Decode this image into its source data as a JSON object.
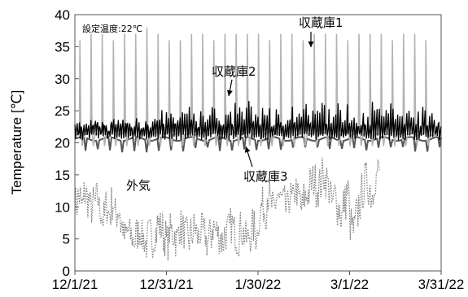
{
  "chart_data": {
    "type": "line",
    "title": "",
    "note": "設定温度:22℃",
    "ylabel": "Temperature [℃]",
    "xlabel": "",
    "ylim": [
      0,
      40
    ],
    "yticks": [
      0,
      5,
      10,
      15,
      20,
      25,
      30,
      35,
      40
    ],
    "xlim": [
      "2021-12-01",
      "2022-03-31"
    ],
    "xticks": [
      "12/1/21",
      "12/31/21",
      "1/30/22",
      "3/1/22",
      "3/31/22"
    ],
    "grid": false,
    "series": [
      {
        "name": "収蔵庫1",
        "color": "#b3b3b3",
        "style": "solid",
        "base": 21.0,
        "spikes_to": [
          36,
          37,
          37,
          36,
          37,
          37,
          38,
          37,
          36,
          36,
          37,
          37,
          36,
          37,
          37,
          37,
          37,
          36,
          37,
          37,
          36,
          37,
          37,
          37,
          36,
          37,
          37,
          37,
          36,
          37,
          37,
          36
        ]
      },
      {
        "name": "収蔵庫2",
        "color": "#000000",
        "style": "solid",
        "base": 21.0,
        "daily_max": [
          23.2,
          23.8,
          23.5,
          24.1,
          23.9,
          24.8,
          24.2,
          25.2,
          24.8,
          26.1,
          25.4,
          25.9,
          25.1,
          26.3,
          26.8,
          26.0,
          25.5,
          26.6,
          26.2,
          25.8,
          26.4,
          26.9,
          26.1,
          25.7,
          26.5,
          26.3,
          25.9,
          26.2,
          26.0,
          25.8
        ]
      },
      {
        "name": "収蔵庫3",
        "color": "#555555",
        "style": "solid",
        "base": 20.6,
        "min_around": 18.5
      },
      {
        "name": "外気",
        "color": "#808080",
        "style": "dotted",
        "daily_mean": [
          10.5,
          11.5,
          10.2,
          12.0,
          11.0,
          9.8,
          10.5,
          11.2,
          9.5,
          8.2,
          10.1,
          9.0,
          10.6,
          8.8,
          9.5,
          7.0,
          5.2,
          6.1,
          5.5,
          4.8,
          5.8,
          6.5,
          5.1,
          4.2,
          5.5,
          4.9,
          6.0,
          7.2,
          6.8,
          5.3,
          4.5,
          6.2,
          5.8,
          4.9,
          7.0,
          6.3,
          5.5,
          4.8,
          5.9,
          6.6,
          5.2,
          6.1,
          5.7,
          4.6,
          5.4,
          6.9,
          6.2,
          5.5,
          4.7,
          5.9,
          6.3,
          7.1,
          6.0,
          5.2,
          6.6,
          5.8,
          4.9,
          5.6,
          6.8,
          5.7,
          8.0,
          10.2,
          9.5,
          11.8,
          10.3,
          9.2,
          12.1,
          11.0,
          10.4,
          9.6,
          11.5,
          10.8,
          12.6,
          11.2,
          9.9,
          11.4,
          12.2,
          13.6,
          14.1,
          12.9,
          13.5,
          15.0,
          14.2,
          12.8,
          10.6,
          11.9,
          9.8,
          8.5,
          10.7,
          12.4,
          7.2,
          6.4,
          8.8,
          10.5,
          12.5,
          14.2,
          13.1,
          12.0,
          14.5,
          15.5
        ]
      }
    ],
    "annotations": [
      {
        "text": "収蔵庫1",
        "series": "収蔵庫1"
      },
      {
        "text": "収蔵庫2",
        "series": "収蔵庫2"
      },
      {
        "text": "収蔵庫3",
        "series": "収蔵庫3"
      },
      {
        "text": "外気",
        "series": "外気"
      }
    ]
  }
}
